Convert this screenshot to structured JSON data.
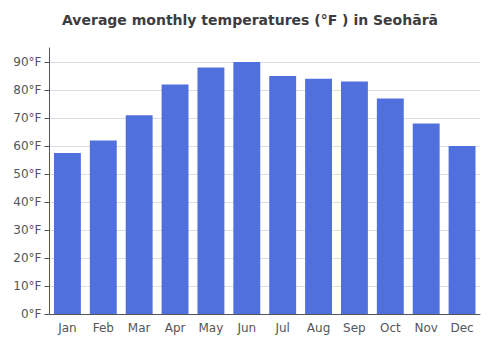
{
  "chart_data": {
    "type": "bar",
    "title": "Average monthly temperatures (°F ) in Seohārā",
    "categories": [
      "Jan",
      "Feb",
      "Mar",
      "Apr",
      "May",
      "Jun",
      "Jul",
      "Aug",
      "Sep",
      "Oct",
      "Nov",
      "Dec"
    ],
    "values": [
      57.5,
      62,
      71,
      82,
      88,
      90,
      85,
      84,
      83,
      77,
      68,
      60
    ],
    "ylim": [
      0,
      95
    ],
    "yticks": [
      {
        "value": 0,
        "label": "0°F"
      },
      {
        "value": 10,
        "label": "10°F"
      },
      {
        "value": 20,
        "label": "20°F"
      },
      {
        "value": 30,
        "label": "30°F"
      },
      {
        "value": 40,
        "label": "40°F"
      },
      {
        "value": 50,
        "label": "50°F"
      },
      {
        "value": 60,
        "label": "60°F"
      },
      {
        "value": 70,
        "label": "70°F"
      },
      {
        "value": 80,
        "label": "80°F"
      },
      {
        "value": 90,
        "label": "90°F"
      }
    ],
    "grid": true
  }
}
